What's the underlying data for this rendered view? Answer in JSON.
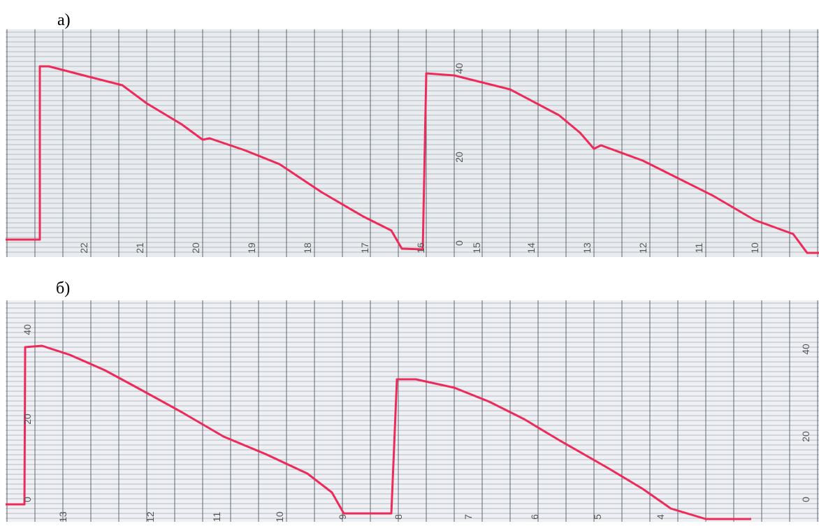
{
  "panels": [
    {
      "label": "а)",
      "scale_labels": [
        "40",
        "20",
        "0"
      ],
      "time_labels": [
        "22",
        "21",
        "20",
        "19",
        "18",
        "17",
        "16",
        "15",
        "14",
        "13",
        "12",
        "11",
        "10"
      ]
    },
    {
      "label": "б)",
      "scale_labels": [
        "40",
        "20",
        "0"
      ],
      "right_scale_labels": [
        "40",
        "20",
        "0"
      ],
      "time_labels": [
        "13",
        "12",
        "11",
        "10",
        "9",
        "8",
        "7",
        "6",
        "5",
        "4"
      ]
    }
  ]
}
